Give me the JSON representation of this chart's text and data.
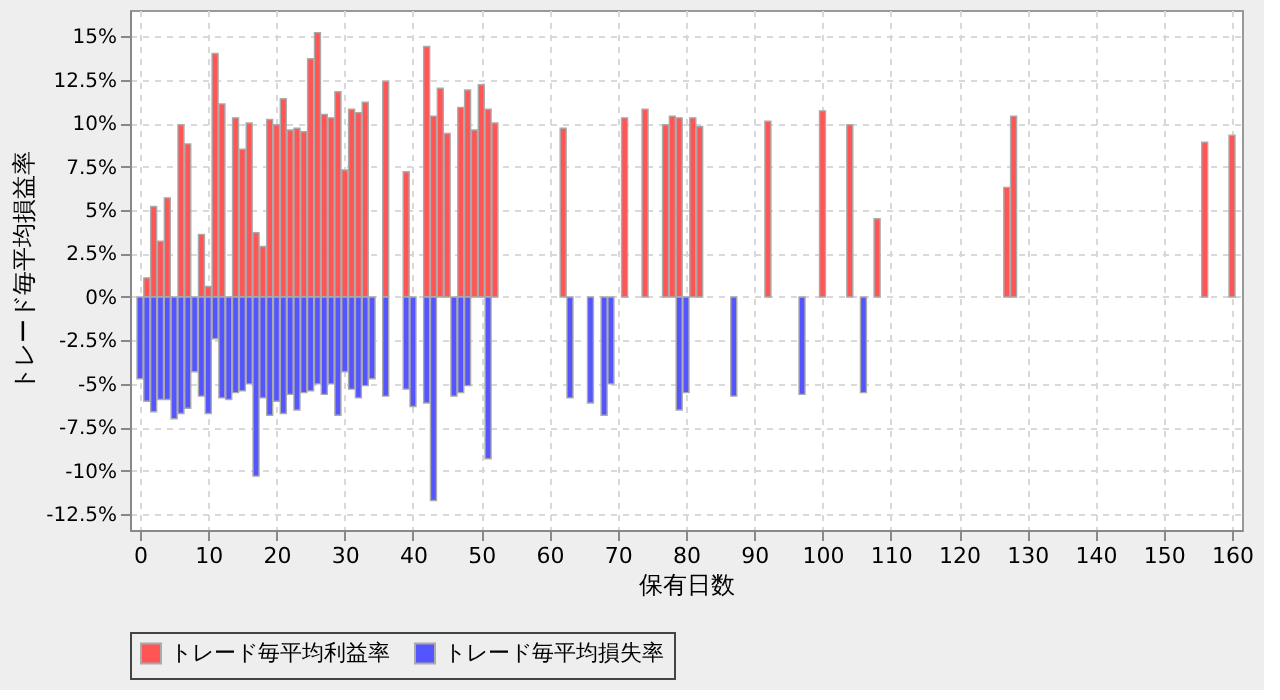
{
  "chart_data": {
    "type": "bar",
    "xlabel": "保有日数",
    "ylabel": "トレード毎平均損益率",
    "xlim": [
      0,
      160
    ],
    "xticks": [
      0,
      10,
      20,
      30,
      40,
      50,
      60,
      70,
      80,
      90,
      100,
      110,
      120,
      130,
      140,
      150,
      160
    ],
    "ylim": [
      -13.4,
      16.5
    ],
    "yticks": [
      {
        "value": -12.5,
        "label": "-12.5%"
      },
      {
        "value": -10,
        "label": "-10%"
      },
      {
        "value": -7.5,
        "label": "-7.5%"
      },
      {
        "value": -5,
        "label": "-5%"
      },
      {
        "value": -2.5,
        "label": "-2.5%"
      },
      {
        "value": 0,
        "label": "0%"
      },
      {
        "value": 2.5,
        "label": "2.5%"
      },
      {
        "value": 5,
        "label": "5%"
      },
      {
        "value": 7.5,
        "label": "7.5%"
      },
      {
        "value": 10,
        "label": "10%"
      },
      {
        "value": 12.5,
        "label": "12.5%"
      },
      {
        "value": 15,
        "label": "15%"
      }
    ],
    "grid": true,
    "legend": "bottom",
    "series": [
      {
        "name": "トレード毎平均利益率",
        "color": "#ff5555",
        "x": [
          1,
          2,
          3,
          4,
          6,
          7,
          9,
          10,
          11,
          12,
          14,
          15,
          16,
          17,
          18,
          19,
          20,
          21,
          22,
          23,
          24,
          25,
          26,
          27,
          28,
          29,
          30,
          31,
          32,
          33,
          36,
          39,
          42,
          43,
          44,
          45,
          47,
          48,
          49,
          50,
          51,
          52,
          62,
          71,
          74,
          77,
          78,
          79,
          81,
          82,
          92,
          100,
          104,
          108,
          127,
          128,
          156,
          160
        ],
        "values": [
          1.1,
          5.2,
          3.2,
          5.7,
          9.9,
          8.8,
          3.6,
          0.6,
          14.0,
          11.1,
          10.3,
          8.5,
          10.0,
          3.7,
          2.9,
          10.2,
          9.9,
          11.4,
          9.6,
          9.7,
          9.5,
          13.7,
          15.2,
          10.5,
          10.3,
          11.8,
          7.3,
          10.8,
          10.6,
          11.2,
          12.4,
          7.2,
          14.4,
          10.4,
          12.0,
          9.4,
          10.9,
          11.9,
          9.6,
          12.2,
          10.8,
          10.0,
          9.7,
          10.3,
          10.8,
          9.9,
          10.4,
          10.3,
          10.3,
          9.8,
          10.1,
          10.7,
          9.9,
          4.5,
          6.3,
          10.4,
          8.9,
          9.3
        ]
      },
      {
        "name": "トレード毎平均損失率",
        "color": "#5555ff",
        "x": [
          0,
          1,
          2,
          3,
          4,
          5,
          6,
          7,
          8,
          9,
          10,
          11,
          12,
          13,
          14,
          15,
          16,
          17,
          18,
          19,
          20,
          21,
          22,
          23,
          24,
          25,
          26,
          27,
          28,
          29,
          30,
          31,
          32,
          33,
          34,
          36,
          39,
          40,
          42,
          43,
          46,
          47,
          48,
          51,
          63,
          66,
          68,
          69,
          79,
          80,
          87,
          97,
          106
        ],
        "values": [
          -4.7,
          -6.0,
          -6.6,
          -5.9,
          -5.9,
          -7.0,
          -6.7,
          -6.4,
          -4.3,
          -5.7,
          -6.7,
          -2.4,
          -5.8,
          -5.9,
          -5.5,
          -5.4,
          -5.0,
          -10.3,
          -5.8,
          -6.8,
          -6.0,
          -6.7,
          -5.6,
          -6.5,
          -5.5,
          -5.4,
          -5.0,
          -5.6,
          -5.0,
          -6.8,
          -4.3,
          -5.3,
          -5.8,
          -5.1,
          -4.7,
          -5.7,
          -5.3,
          -6.3,
          -6.1,
          -11.7,
          -5.7,
          -5.5,
          -5.1,
          -9.3,
          -5.8,
          -6.1,
          -6.8,
          -5.0,
          -6.5,
          -5.5,
          -5.7,
          -5.6,
          -5.5
        ]
      }
    ]
  }
}
